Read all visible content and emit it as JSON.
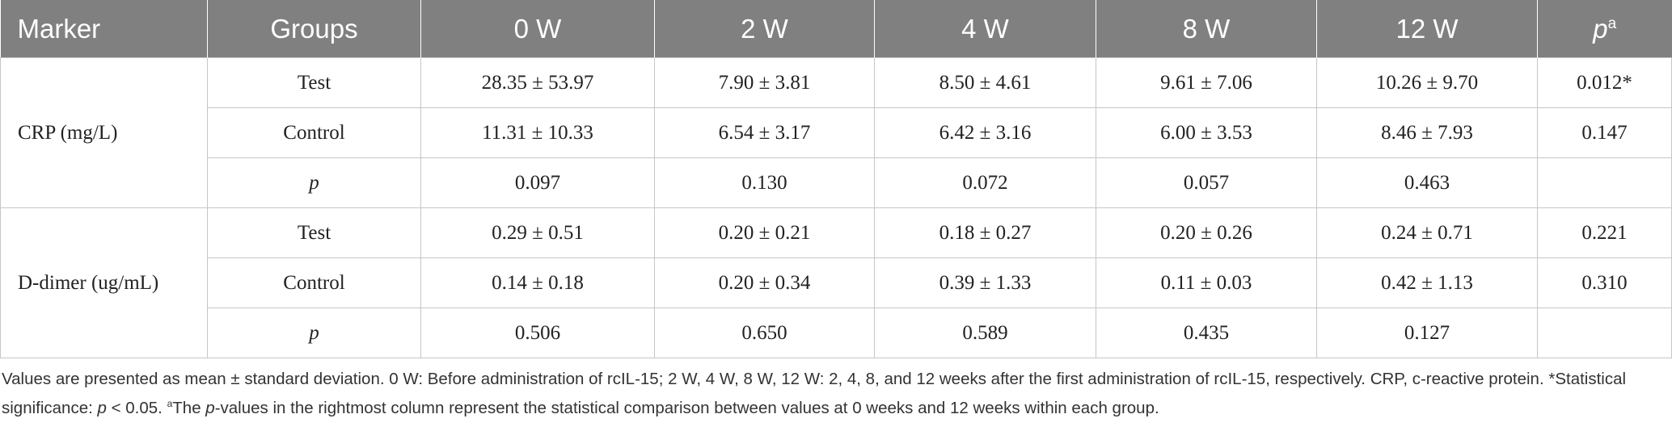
{
  "table": {
    "headers": {
      "marker": "Marker",
      "groups": "Groups",
      "w0": "0 W",
      "w2": "2 W",
      "w4": "4 W",
      "w8": "8 W",
      "w12": "12 W",
      "p_base": "p",
      "p_sup": "a"
    },
    "sections": [
      {
        "marker": "CRP (mg/L)",
        "rows": [
          {
            "group": "Test",
            "w0": "28.35 ± 53.97",
            "w2": "7.90 ± 3.81",
            "w4": "8.50 ± 4.61",
            "w8": "9.61 ± 7.06",
            "w12": "10.26 ± 9.70",
            "p": "0.012*"
          },
          {
            "group": "Control",
            "w0": "11.31 ± 10.33",
            "w2": "6.54 ± 3.17",
            "w4": "6.42 ± 3.16",
            "w8": "6.00 ± 3.53",
            "w12": "8.46 ± 7.93",
            "p": "0.147"
          },
          {
            "group": "p",
            "w0": "0.097",
            "w2": "0.130",
            "w4": "0.072",
            "w8": "0.057",
            "w12": "0.463",
            "p": ""
          }
        ]
      },
      {
        "marker": "D-dimer (ug/mL)",
        "rows": [
          {
            "group": "Test",
            "w0": "0.29 ± 0.51",
            "w2": "0.20 ± 0.21",
            "w4": "0.18 ± 0.27",
            "w8": "0.20 ± 0.26",
            "w12": "0.24 ± 0.71",
            "p": "0.221"
          },
          {
            "group": "Control",
            "w0": "0.14 ± 0.18",
            "w2": "0.20 ± 0.34",
            "w4": "0.39 ± 1.33",
            "w8": "0.11 ± 0.03",
            "w12": "0.42 ± 1.13",
            "p": "0.310"
          },
          {
            "group": "p",
            "w0": "0.506",
            "w2": "0.650",
            "w4": "0.589",
            "w8": "0.435",
            "w12": "0.127",
            "p": ""
          }
        ]
      }
    ]
  },
  "footnote": {
    "t1": "Values are presented as mean ± standard deviation. 0 W: Before administration of rcIL-15; 2 W, 4 W, 8 W, 12 W: 2, 4, 8, and 12 weeks after the first administration of rcIL-15, respectively. CRP, c-reactive protein. *Statistical significance: ",
    "t2": "p",
    "t3": " < 0.05. ",
    "t4": "a",
    "t5": "The ",
    "t6": "p",
    "t7": "-values in the rightmost column represent the statistical comparison between values at 0 weeks and 12 weeks within each group."
  }
}
